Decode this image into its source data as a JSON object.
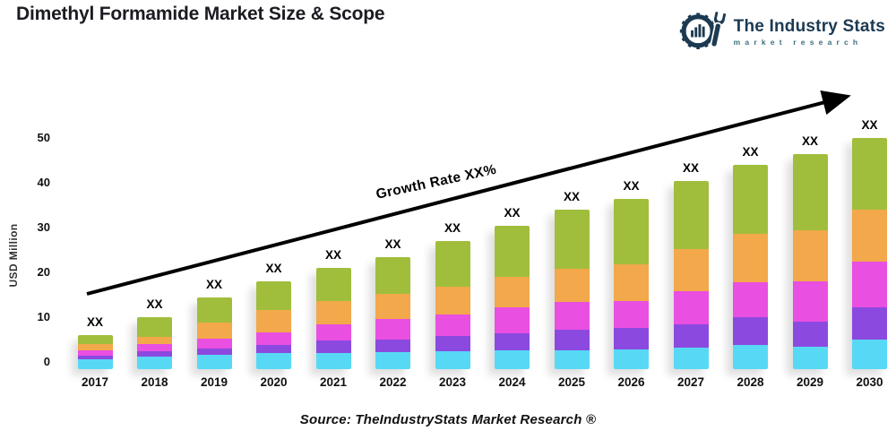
{
  "header": {
    "title": "Dimethyl Formamide Market Size & Scope",
    "logo": {
      "name": "The Industry Stats",
      "tagline": "market research",
      "brand_color": "#1c3a52"
    }
  },
  "chart_data": {
    "type": "bar",
    "stacked": true,
    "title": "Dimethyl Formamide Market Size & Scope",
    "xlabel": "",
    "ylabel": "USD Million",
    "ylim": [
      0,
      50
    ],
    "yticks": [
      0,
      10,
      20,
      30,
      40,
      50
    ],
    "grid": false,
    "legend_position": "none",
    "categories": [
      "2017",
      "2018",
      "2019",
      "2020",
      "2021",
      "2022",
      "2023",
      "2024",
      "2025",
      "2026",
      "2027",
      "2028",
      "2029",
      "2030"
    ],
    "totals": [
      6,
      10,
      14.5,
      18,
      21,
      23.5,
      27,
      30.5,
      34,
      36.5,
      40.5,
      44,
      46.5,
      50
    ],
    "bar_value_label": "XX",
    "trend_label": "Growth Rate XX%",
    "series": [
      {
        "name": "segment-cyan",
        "color": "#57D9F5",
        "values": [
          0.7,
          1.3,
          1.6,
          2.0,
          2.0,
          2.2,
          2.4,
          2.7,
          2.7,
          2.9,
          3.3,
          3.9,
          3.5,
          5.1
        ]
      },
      {
        "name": "segment-purple",
        "color": "#8C49E0",
        "values": [
          0.8,
          1.2,
          1.45,
          1.8,
          2.9,
          2.9,
          3.4,
          3.8,
          4.6,
          4.8,
          5.2,
          6.1,
          5.6,
          7.1
        ]
      },
      {
        "name": "segment-magenta",
        "color": "#E94FE1",
        "values": [
          1.2,
          1.6,
          2.2,
          2.75,
          3.5,
          4.6,
          4.9,
          5.7,
          6.1,
          5.9,
          7.3,
          7.8,
          8.9,
          10.3
        ]
      },
      {
        "name": "segment-orange",
        "color": "#F2A84B",
        "values": [
          1.4,
          1.6,
          3.6,
          5.0,
          5.2,
          5.5,
          6.2,
          6.9,
          7.5,
          8.2,
          9.4,
          10.9,
          11.5,
          11.5
        ]
      },
      {
        "name": "segment-green",
        "color": "#A0BE3C",
        "values": [
          1.9,
          4.3,
          5.65,
          6.45,
          7.4,
          8.3,
          10.1,
          11.4,
          13.1,
          14.7,
          15.3,
          15.3,
          17.0,
          16.0
        ]
      }
    ]
  },
  "footer": {
    "source": "Source: TheIndustryStats Market Research ®"
  }
}
